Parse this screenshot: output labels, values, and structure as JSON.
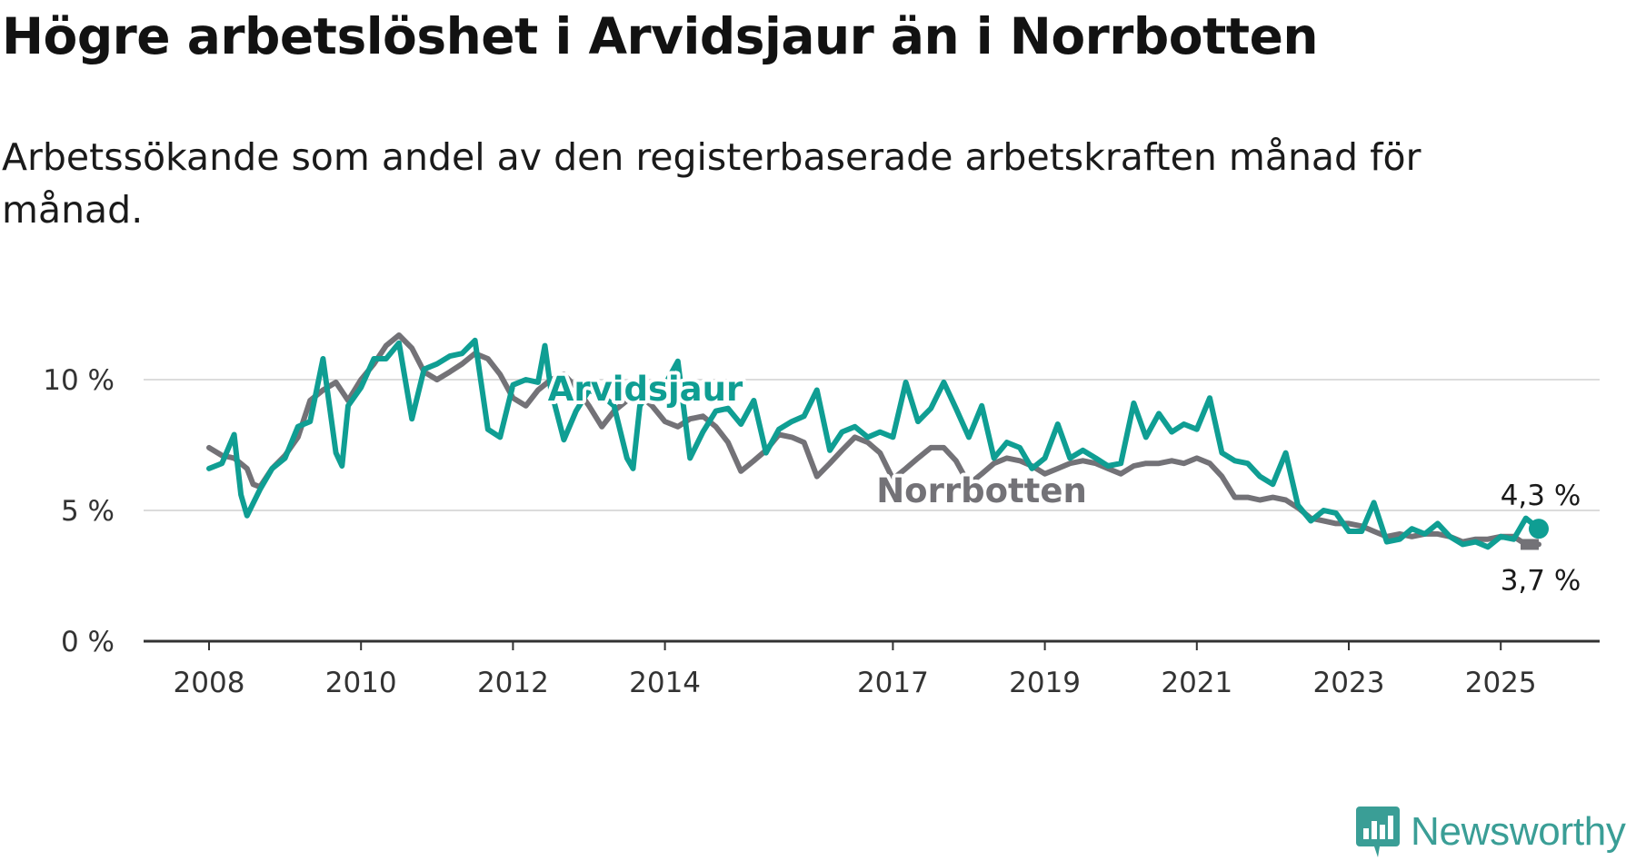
{
  "title": "Högre arbetslöshet i Arvidsjaur än i Norrbotten",
  "subtitle": "Arbetssökande som andel av den registerbaserade arbetskraften månad för månad.",
  "brand": {
    "name": "Newsworthy",
    "color": "#3a9e96",
    "icon": "newsworthy-logo-icon"
  },
  "chart_data": {
    "type": "line",
    "title": "Högre arbetslöshet i Arvidsjaur än i Norrbotten",
    "subtitle": "Arbetssökande som andel av den registerbaserade arbetskraften månad för månad.",
    "xlabel": "",
    "ylabel": "",
    "x_ticks": [
      "2008",
      "2010",
      "2012",
      "2014",
      "2017",
      "2019",
      "2021",
      "2023",
      "2025"
    ],
    "x_tick_values": [
      2008,
      2010,
      2012,
      2014,
      2017,
      2019,
      2021,
      2023,
      2025
    ],
    "y_ticks": [
      "0 %",
      "5 %",
      "10 %"
    ],
    "y_tick_values": [
      0,
      5,
      10
    ],
    "xlim": [
      2008,
      2025.5
    ],
    "ylim": [
      0,
      12
    ],
    "grid": "horizontal",
    "legend": "inline labels",
    "series": [
      {
        "name": "Norrbotten",
        "color": "#737277",
        "end_label": "3,7 %",
        "points": [
          [
            2008.0,
            7.4
          ],
          [
            2008.17,
            7.1
          ],
          [
            2008.33,
            7.0
          ],
          [
            2008.5,
            6.6
          ],
          [
            2008.58,
            6.0
          ],
          [
            2008.67,
            5.9
          ],
          [
            2008.83,
            6.6
          ],
          [
            2009.0,
            7.1
          ],
          [
            2009.17,
            7.8
          ],
          [
            2009.33,
            9.2
          ],
          [
            2009.5,
            9.6
          ],
          [
            2009.67,
            9.9
          ],
          [
            2009.83,
            9.2
          ],
          [
            2010.0,
            10.0
          ],
          [
            2010.17,
            10.6
          ],
          [
            2010.33,
            11.3
          ],
          [
            2010.5,
            11.7
          ],
          [
            2010.67,
            11.2
          ],
          [
            2010.83,
            10.3
          ],
          [
            2011.0,
            10.0
          ],
          [
            2011.17,
            10.3
          ],
          [
            2011.33,
            10.6
          ],
          [
            2011.5,
            11.0
          ],
          [
            2011.67,
            10.8
          ],
          [
            2011.83,
            10.2
          ],
          [
            2012.0,
            9.3
          ],
          [
            2012.17,
            9.0
          ],
          [
            2012.33,
            9.6
          ],
          [
            2012.5,
            10.0
          ],
          [
            2012.67,
            10.2
          ],
          [
            2012.83,
            9.7
          ],
          [
            2013.0,
            9.0
          ],
          [
            2013.17,
            8.2
          ],
          [
            2013.33,
            8.8
          ],
          [
            2013.5,
            9.2
          ],
          [
            2013.67,
            9.4
          ],
          [
            2013.83,
            9.0
          ],
          [
            2014.0,
            8.4
          ],
          [
            2014.17,
            8.2
          ],
          [
            2014.33,
            8.5
          ],
          [
            2014.5,
            8.6
          ],
          [
            2014.67,
            8.2
          ],
          [
            2014.83,
            7.6
          ],
          [
            2015.0,
            6.5
          ],
          [
            2015.17,
            6.9
          ],
          [
            2015.33,
            7.3
          ],
          [
            2015.5,
            7.9
          ],
          [
            2015.67,
            7.8
          ],
          [
            2015.83,
            7.6
          ],
          [
            2016.0,
            6.3
          ],
          [
            2016.17,
            6.8
          ],
          [
            2016.33,
            7.3
          ],
          [
            2016.5,
            7.8
          ],
          [
            2016.67,
            7.6
          ],
          [
            2016.83,
            7.2
          ],
          [
            2017.0,
            6.2
          ],
          [
            2017.17,
            6.6
          ],
          [
            2017.33,
            7.0
          ],
          [
            2017.5,
            7.4
          ],
          [
            2017.67,
            7.4
          ],
          [
            2017.83,
            6.9
          ],
          [
            2018.0,
            6.0
          ],
          [
            2018.17,
            6.4
          ],
          [
            2018.33,
            6.8
          ],
          [
            2018.5,
            7.0
          ],
          [
            2018.67,
            6.9
          ],
          [
            2018.83,
            6.7
          ],
          [
            2019.0,
            6.4
          ],
          [
            2019.17,
            6.6
          ],
          [
            2019.33,
            6.8
          ],
          [
            2019.5,
            6.9
          ],
          [
            2019.67,
            6.8
          ],
          [
            2019.83,
            6.6
          ],
          [
            2020.0,
            6.4
          ],
          [
            2020.17,
            6.7
          ],
          [
            2020.33,
            6.8
          ],
          [
            2020.5,
            6.8
          ],
          [
            2020.67,
            6.9
          ],
          [
            2020.83,
            6.8
          ],
          [
            2021.0,
            7.0
          ],
          [
            2021.17,
            6.8
          ],
          [
            2021.33,
            6.3
          ],
          [
            2021.5,
            5.5
          ],
          [
            2021.67,
            5.5
          ],
          [
            2021.83,
            5.4
          ],
          [
            2022.0,
            5.5
          ],
          [
            2022.17,
            5.4
          ],
          [
            2022.33,
            5.1
          ],
          [
            2022.5,
            4.7
          ],
          [
            2022.67,
            4.6
          ],
          [
            2022.83,
            4.5
          ],
          [
            2023.0,
            4.5
          ],
          [
            2023.17,
            4.4
          ],
          [
            2023.33,
            4.2
          ],
          [
            2023.5,
            4.0
          ],
          [
            2023.67,
            4.1
          ],
          [
            2023.83,
            4.0
          ],
          [
            2024.0,
            4.1
          ],
          [
            2024.17,
            4.1
          ],
          [
            2024.33,
            4.0
          ],
          [
            2024.5,
            3.8
          ],
          [
            2024.67,
            3.9
          ],
          [
            2024.83,
            3.9
          ],
          [
            2025.0,
            4.0
          ],
          [
            2025.17,
            4.0
          ],
          [
            2025.33,
            3.7
          ],
          [
            2025.5,
            3.7
          ]
        ]
      },
      {
        "name": "Arvidsjaur",
        "color": "#0f9e93",
        "end_label": "4,3 %",
        "points": [
          [
            2008.0,
            6.6
          ],
          [
            2008.17,
            6.8
          ],
          [
            2008.33,
            7.9
          ],
          [
            2008.42,
            5.6
          ],
          [
            2008.5,
            4.8
          ],
          [
            2008.67,
            5.8
          ],
          [
            2008.83,
            6.6
          ],
          [
            2009.0,
            7.0
          ],
          [
            2009.17,
            8.2
          ],
          [
            2009.33,
            8.4
          ],
          [
            2009.5,
            10.8
          ],
          [
            2009.67,
            7.2
          ],
          [
            2009.75,
            6.7
          ],
          [
            2009.83,
            9.0
          ],
          [
            2010.0,
            9.7
          ],
          [
            2010.17,
            10.8
          ],
          [
            2010.33,
            10.8
          ],
          [
            2010.5,
            11.4
          ],
          [
            2010.67,
            8.5
          ],
          [
            2010.83,
            10.4
          ],
          [
            2011.0,
            10.6
          ],
          [
            2011.17,
            10.9
          ],
          [
            2011.33,
            11.0
          ],
          [
            2011.5,
            11.5
          ],
          [
            2011.67,
            8.1
          ],
          [
            2011.83,
            7.8
          ],
          [
            2012.0,
            9.8
          ],
          [
            2012.17,
            10.0
          ],
          [
            2012.33,
            9.9
          ],
          [
            2012.42,
            11.3
          ],
          [
            2012.5,
            9.6
          ],
          [
            2012.67,
            7.7
          ],
          [
            2012.83,
            8.8
          ],
          [
            2013.0,
            9.6
          ],
          [
            2013.17,
            9.4
          ],
          [
            2013.33,
            9.0
          ],
          [
            2013.5,
            7.0
          ],
          [
            2013.58,
            6.6
          ],
          [
            2013.67,
            9.0
          ],
          [
            2013.83,
            9.7
          ],
          [
            2014.0,
            9.8
          ],
          [
            2014.17,
            10.7
          ],
          [
            2014.33,
            7.0
          ],
          [
            2014.5,
            8.0
          ],
          [
            2014.67,
            8.8
          ],
          [
            2014.83,
            8.9
          ],
          [
            2015.0,
            8.3
          ],
          [
            2015.17,
            9.2
          ],
          [
            2015.33,
            7.2
          ],
          [
            2015.5,
            8.1
          ],
          [
            2015.67,
            8.4
          ],
          [
            2015.83,
            8.6
          ],
          [
            2016.0,
            9.6
          ],
          [
            2016.17,
            7.3
          ],
          [
            2016.33,
            8.0
          ],
          [
            2016.5,
            8.2
          ],
          [
            2016.67,
            7.8
          ],
          [
            2016.83,
            8.0
          ],
          [
            2017.0,
            7.8
          ],
          [
            2017.17,
            9.9
          ],
          [
            2017.33,
            8.4
          ],
          [
            2017.5,
            8.9
          ],
          [
            2017.67,
            9.9
          ],
          [
            2017.83,
            8.9
          ],
          [
            2018.0,
            7.8
          ],
          [
            2018.17,
            9.0
          ],
          [
            2018.33,
            7.0
          ],
          [
            2018.5,
            7.6
          ],
          [
            2018.67,
            7.4
          ],
          [
            2018.83,
            6.6
          ],
          [
            2019.0,
            7.0
          ],
          [
            2019.17,
            8.3
          ],
          [
            2019.33,
            7.0
          ],
          [
            2019.5,
            7.3
          ],
          [
            2019.67,
            7.0
          ],
          [
            2019.83,
            6.7
          ],
          [
            2020.0,
            6.8
          ],
          [
            2020.17,
            9.1
          ],
          [
            2020.33,
            7.8
          ],
          [
            2020.5,
            8.7
          ],
          [
            2020.67,
            8.0
          ],
          [
            2020.83,
            8.3
          ],
          [
            2021.0,
            8.1
          ],
          [
            2021.17,
            9.3
          ],
          [
            2021.33,
            7.2
          ],
          [
            2021.5,
            6.9
          ],
          [
            2021.67,
            6.8
          ],
          [
            2021.83,
            6.3
          ],
          [
            2022.0,
            6.0
          ],
          [
            2022.17,
            7.2
          ],
          [
            2022.33,
            5.2
          ],
          [
            2022.5,
            4.6
          ],
          [
            2022.67,
            5.0
          ],
          [
            2022.83,
            4.9
          ],
          [
            2023.0,
            4.2
          ],
          [
            2023.17,
            4.2
          ],
          [
            2023.33,
            5.3
          ],
          [
            2023.5,
            3.8
          ],
          [
            2023.67,
            3.9
          ],
          [
            2023.83,
            4.3
          ],
          [
            2024.0,
            4.1
          ],
          [
            2024.17,
            4.5
          ],
          [
            2024.33,
            4.0
          ],
          [
            2024.5,
            3.7
          ],
          [
            2024.67,
            3.8
          ],
          [
            2024.83,
            3.6
          ],
          [
            2025.0,
            4.0
          ],
          [
            2025.17,
            3.9
          ],
          [
            2025.33,
            4.7
          ],
          [
            2025.5,
            4.3
          ]
        ]
      }
    ]
  }
}
